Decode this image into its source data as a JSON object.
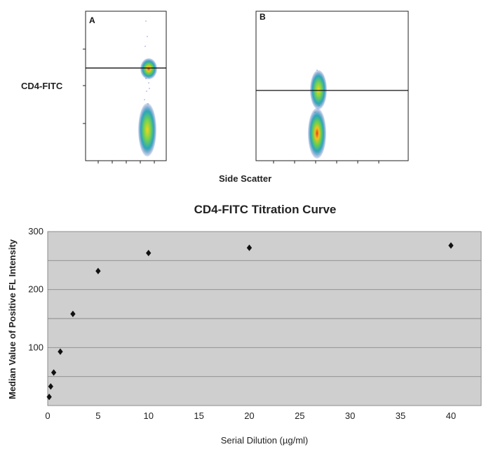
{
  "chart_data": [
    {
      "type": "scatter",
      "title": "",
      "panels": [
        {
          "label": "A",
          "gate_level": 0.62
        },
        {
          "label": "B",
          "gate_level": 0.47
        }
      ],
      "ylabel": "CD4-FITC",
      "xlabel": "Side Scatter",
      "grid": false
    },
    {
      "type": "scatter",
      "title": "CD4-FITC Titration Curve",
      "xlabel": "Serial Dilution (µg/ml)",
      "ylabel": "Median Value of Positive FL Intensity",
      "xlim": [
        0,
        43
      ],
      "ylim": [
        0,
        300
      ],
      "x_ticks": [
        0,
        5,
        10,
        15,
        20,
        25,
        30,
        35,
        40
      ],
      "y_tick_labels": [
        100,
        200,
        300
      ],
      "grid": true,
      "points": [
        {
          "x": 0.15,
          "y": 15
        },
        {
          "x": 0.3,
          "y": 33
        },
        {
          "x": 0.6,
          "y": 57
        },
        {
          "x": 1.25,
          "y": 93
        },
        {
          "x": 2.5,
          "y": 158
        },
        {
          "x": 5,
          "y": 232
        },
        {
          "x": 10,
          "y": 263
        },
        {
          "x": 20,
          "y": 272
        },
        {
          "x": 40,
          "y": 276
        }
      ],
      "colors": {
        "plot_background": "#cfcfcf",
        "marker": "#111111",
        "gridline": "#8a8a8a"
      }
    }
  ]
}
